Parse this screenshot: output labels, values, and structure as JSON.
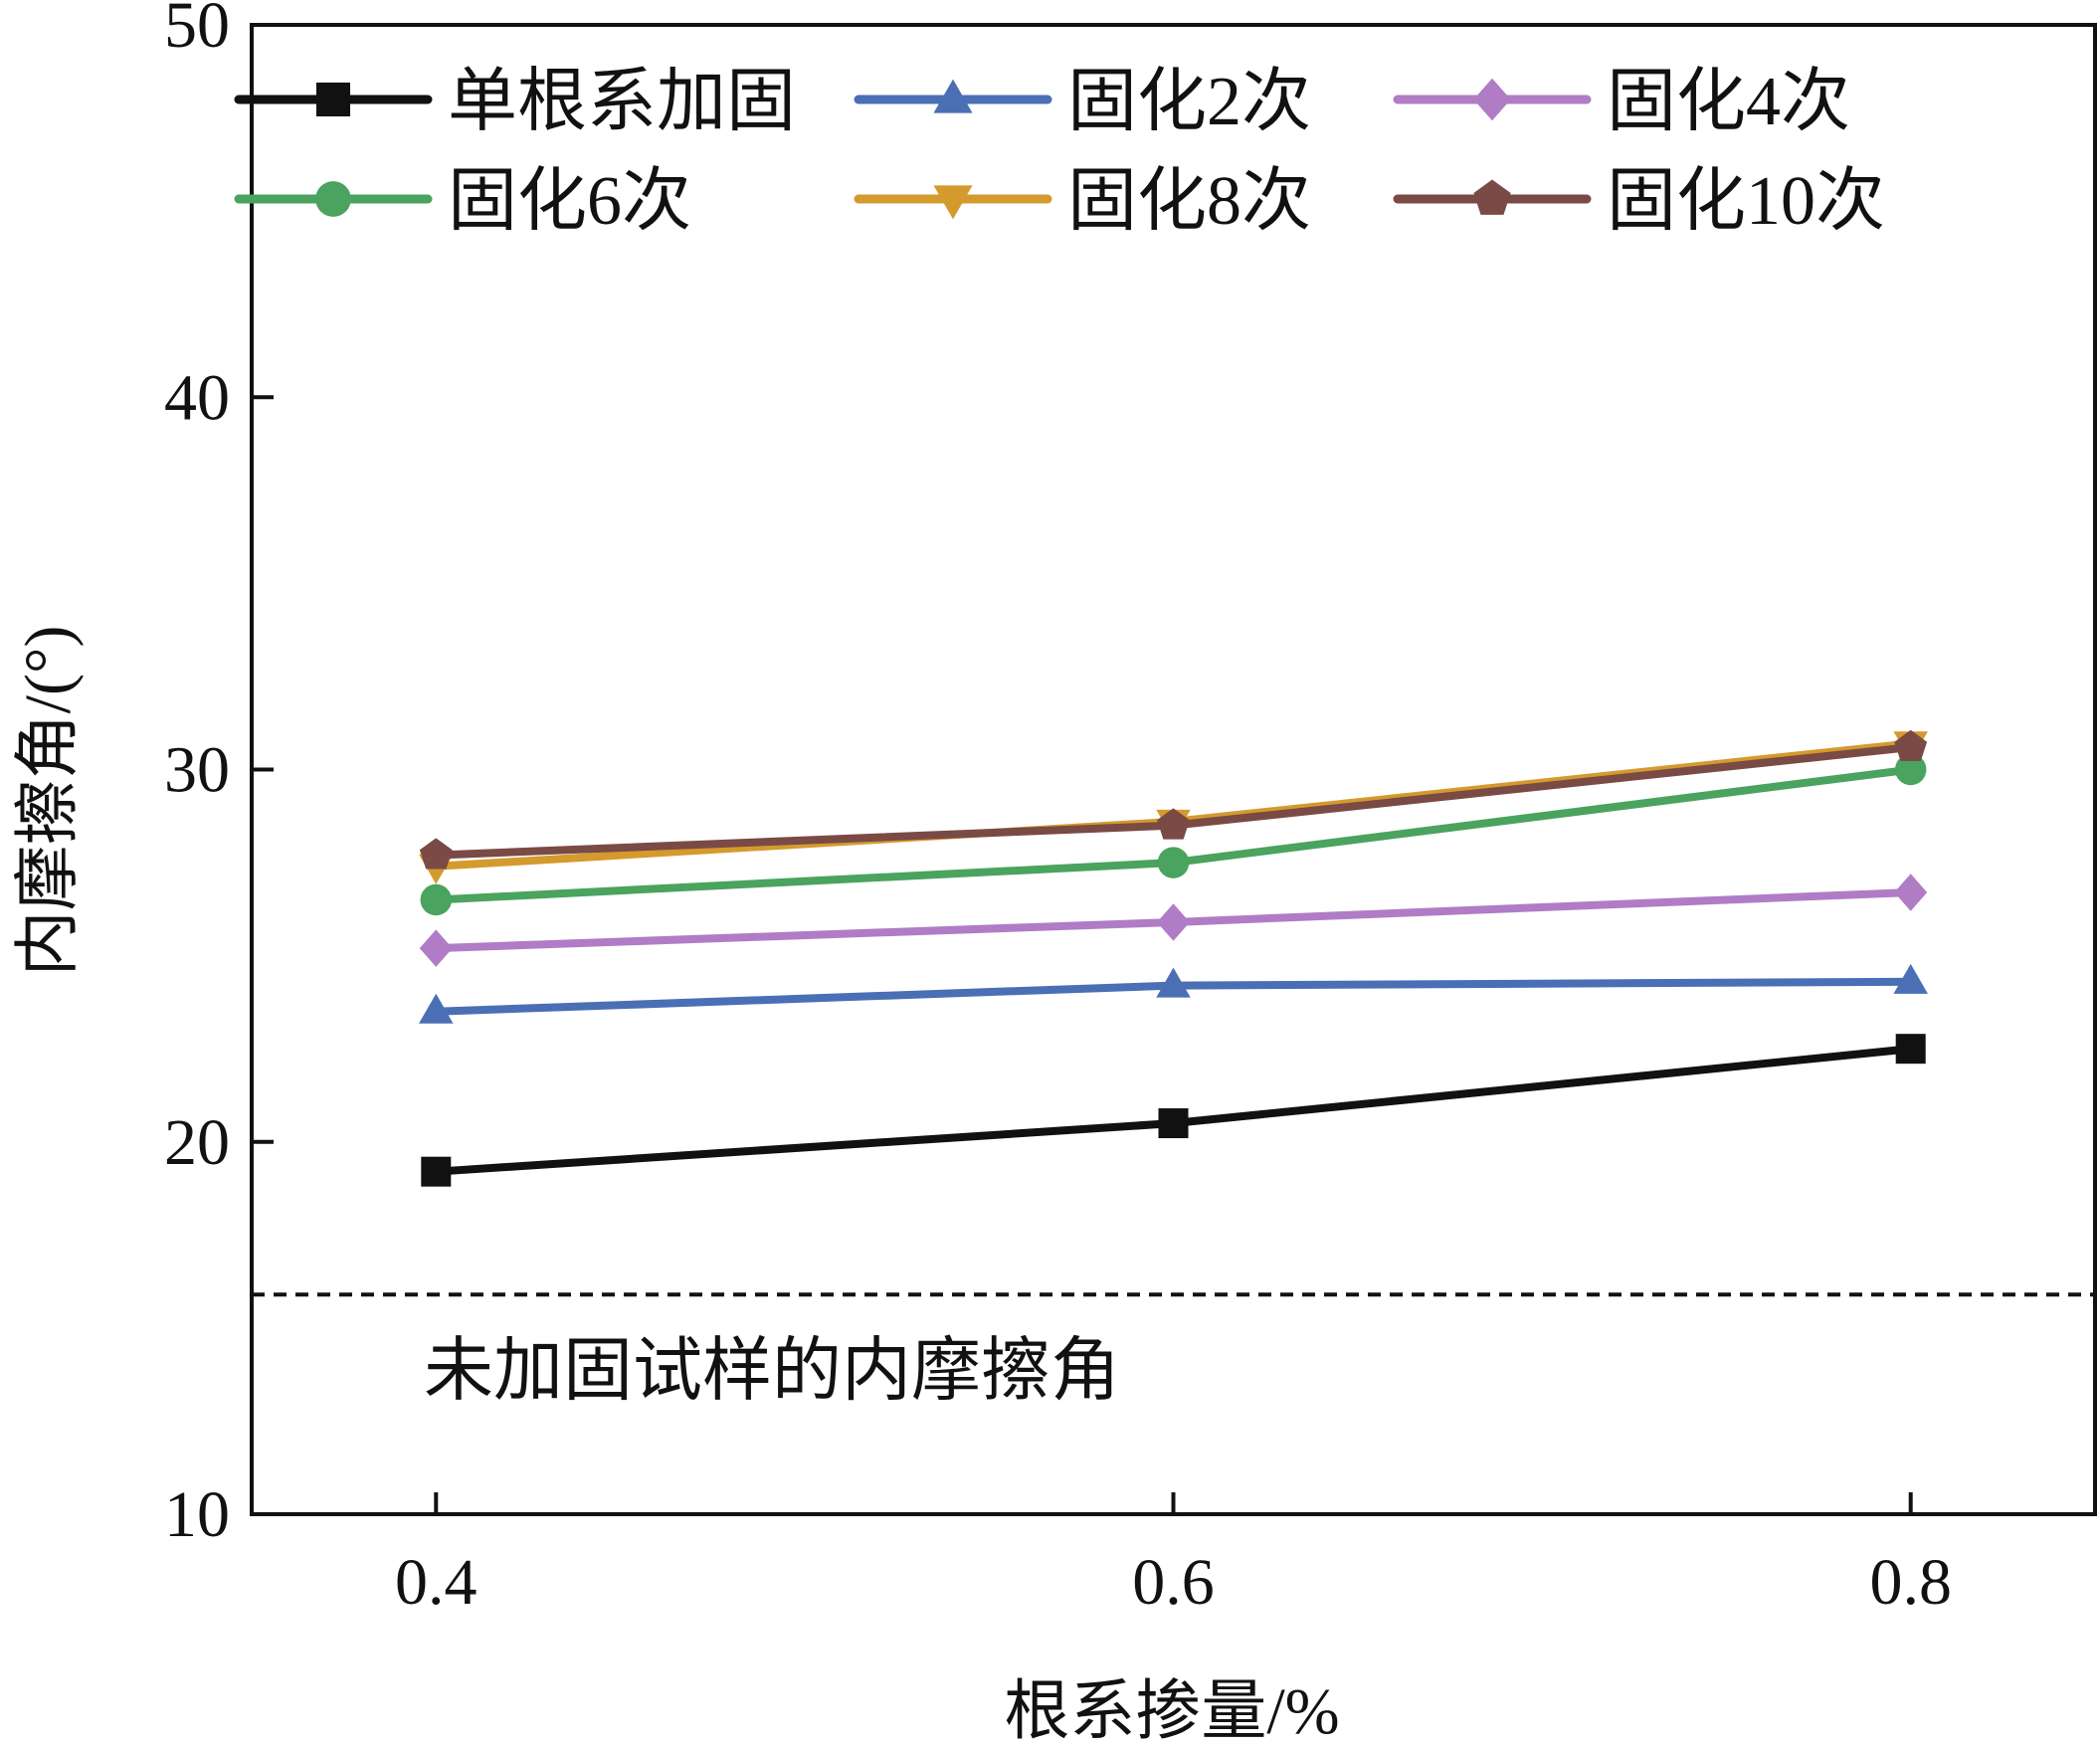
{
  "chart_data": {
    "type": "line",
    "title": "",
    "xlabel": "根系掺量/%",
    "ylabel": "内摩擦角/(°)",
    "x": [
      0.4,
      0.6,
      0.8
    ],
    "x_tick_labels": [
      "0.4",
      "0.6",
      "0.8"
    ],
    "xlim": [
      0.35,
      0.85
    ],
    "ylim": [
      10,
      50
    ],
    "y_ticks": [
      10,
      20,
      30,
      40,
      50
    ],
    "y_tick_labels": [
      "10",
      "20",
      "30",
      "40",
      "50"
    ],
    "grid": false,
    "legend_position": "top",
    "series": [
      {
        "name": "单根系加固",
        "values": [
          19.2,
          20.5,
          22.5
        ],
        "color": "#111111",
        "marker": "square"
      },
      {
        "name": "固化2次",
        "values": [
          23.5,
          24.2,
          24.3
        ],
        "color": "#4a6fb5",
        "marker": "triangle-up"
      },
      {
        "name": "固化4次",
        "values": [
          25.2,
          25.9,
          26.7
        ],
        "color": "#b07cc6",
        "marker": "diamond"
      },
      {
        "name": "固化6次",
        "values": [
          26.5,
          27.5,
          30.0
        ],
        "color": "#4aa35e",
        "marker": "circle"
      },
      {
        "name": "固化8次",
        "values": [
          27.4,
          28.6,
          30.7
        ],
        "color": "#d49a2e",
        "marker": "triangle-down"
      },
      {
        "name": "固化10次",
        "values": [
          27.7,
          28.5,
          30.6
        ],
        "color": "#7a4a45",
        "marker": "pentagon"
      }
    ],
    "reference_line": {
      "value": 15.9,
      "label": "未加固试样的内摩擦角",
      "color": "#111111",
      "style": "dashed"
    }
  }
}
